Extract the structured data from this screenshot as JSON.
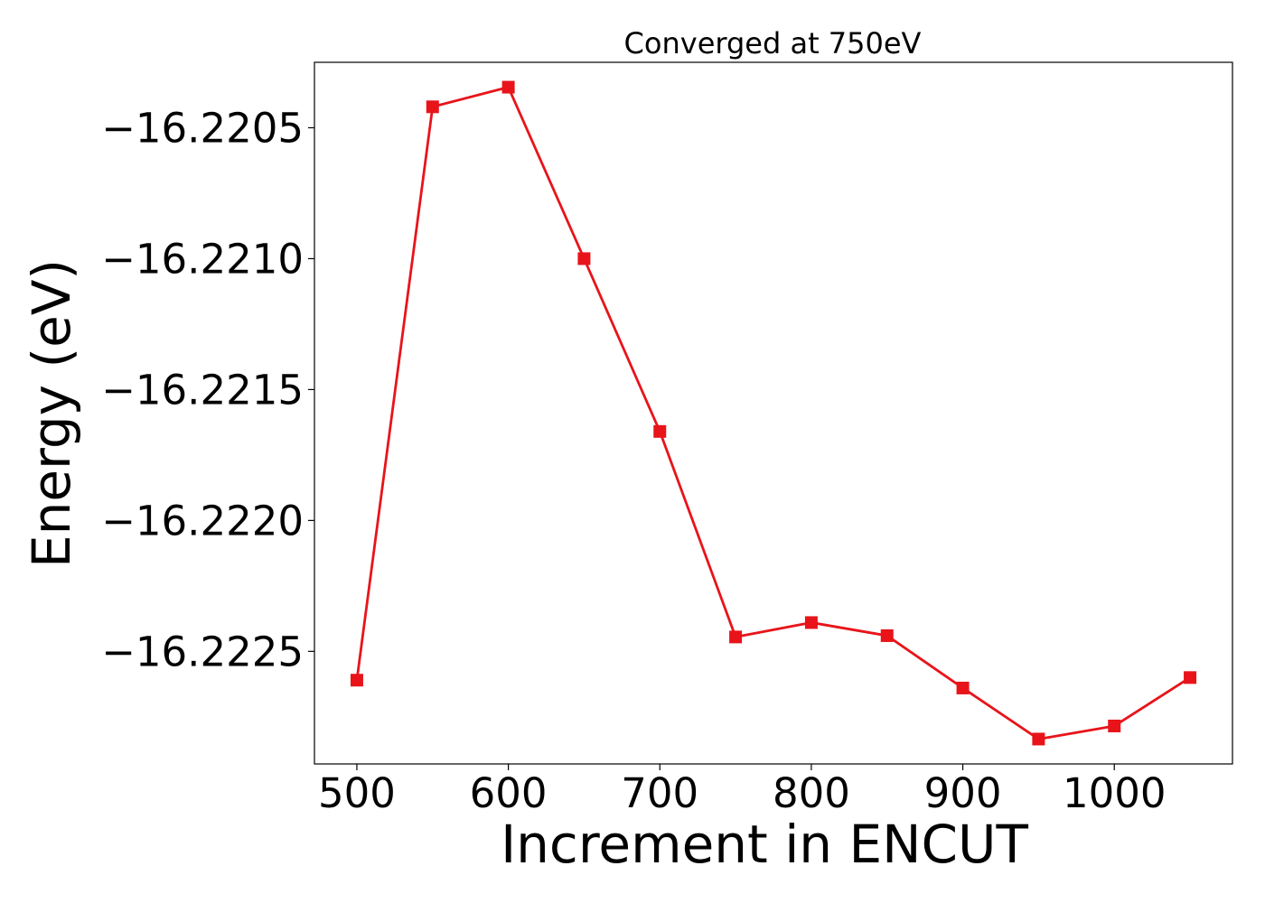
{
  "chart_data": {
    "type": "line",
    "title": "Converged at 750eV",
    "xlabel": "Increment in ENCUT",
    "ylabel": "Energy (eV)",
    "xlim": [
      472,
      1078
    ],
    "ylim": [
      -16.22293,
      -16.22025
    ],
    "xticks": [
      500,
      600,
      700,
      800,
      900,
      1000
    ],
    "xtick_labels": [
      "500",
      "600",
      "700",
      "800",
      "900",
      "1000"
    ],
    "yticks": [
      -16.2205,
      -16.221,
      -16.2215,
      -16.222,
      -16.2225
    ],
    "ytick_labels": [
      "−16.2205",
      "−16.2210",
      "−16.2215",
      "−16.2220",
      "−16.2225"
    ],
    "grid": false,
    "marker": "square",
    "color": "#e8141a",
    "x": [
      500,
      550,
      600,
      650,
      700,
      750,
      800,
      850,
      900,
      950,
      1000,
      1050
    ],
    "y": [
      -16.22261,
      -16.22042,
      -16.220345,
      -16.221,
      -16.22166,
      -16.222445,
      -16.22239,
      -16.22244,
      -16.22264,
      -16.222835,
      -16.222785,
      -16.2226
    ]
  }
}
